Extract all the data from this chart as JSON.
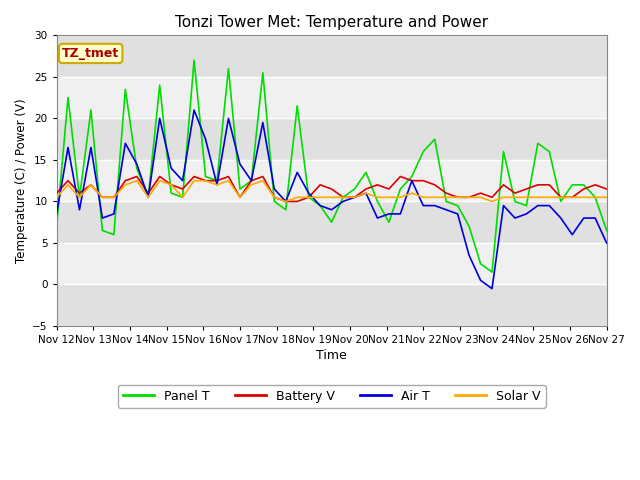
{
  "title": "Tonzi Tower Met: Temperature and Power",
  "xlabel": "Time",
  "ylabel": "Temperature (C) / Power (V)",
  "ylim": [
    -5,
    30
  ],
  "yticks": [
    -5,
    0,
    5,
    10,
    15,
    20,
    25,
    30
  ],
  "x_labels": [
    "Nov 12",
    "Nov 13",
    "Nov 14",
    "Nov 15",
    "Nov 16",
    "Nov 17",
    "Nov 18",
    "Nov 19",
    "Nov 20",
    "Nov 21",
    "Nov 22",
    "Nov 23",
    "Nov 24",
    "Nov 25",
    "Nov 26",
    "Nov 27"
  ],
  "annotation_text": "TZ_tmet",
  "annotation_color": "#aa0000",
  "annotation_bg": "#ffffcc",
  "annotation_border": "#ccaa00",
  "fig_bg": "#ffffff",
  "plot_bg_light": "#f0f0f0",
  "plot_bg_dark": "#e0e0e0",
  "grid_color": "#ffffff",
  "panel_t_color": "#00dd00",
  "battery_v_color": "#dd0000",
  "air_t_color": "#0000dd",
  "solar_v_color": "#ffaa00",
  "line_width": 1.2,
  "panel_t": [
    7.0,
    22.5,
    10.5,
    21.0,
    6.5,
    6.0,
    23.5,
    14.0,
    10.5,
    24.0,
    11.0,
    10.5,
    27.0,
    13.0,
    12.5,
    26.0,
    11.5,
    12.5,
    25.5,
    10.0,
    9.0,
    21.5,
    10.5,
    9.5,
    7.5,
    10.5,
    11.5,
    13.5,
    10.0,
    7.5,
    11.5,
    13.0,
    16.0,
    17.5,
    10.0,
    9.5,
    7.0,
    2.5,
    1.5,
    16.0,
    10.0,
    9.5,
    17.0,
    16.0,
    10.0,
    12.0,
    12.0,
    10.5,
    6.5
  ],
  "battery_v": [
    11.0,
    12.5,
    11.0,
    12.0,
    10.5,
    10.5,
    12.5,
    13.0,
    11.0,
    13.0,
    12.0,
    11.5,
    13.0,
    12.5,
    12.5,
    13.0,
    10.5,
    12.5,
    13.0,
    10.5,
    10.0,
    10.0,
    10.5,
    12.0,
    11.5,
    10.5,
    10.5,
    11.5,
    12.0,
    11.5,
    13.0,
    12.5,
    12.5,
    12.0,
    11.0,
    10.5,
    10.5,
    11.0,
    10.5,
    12.0,
    11.0,
    11.5,
    12.0,
    12.0,
    10.5,
    10.5,
    11.5,
    12.0,
    11.5
  ],
  "air_t": [
    8.5,
    16.5,
    9.0,
    16.5,
    8.0,
    8.5,
    17.0,
    14.5,
    10.5,
    20.0,
    14.0,
    12.5,
    21.0,
    17.5,
    12.0,
    20.0,
    14.5,
    12.5,
    19.5,
    11.5,
    10.0,
    13.5,
    11.0,
    9.5,
    9.0,
    10.0,
    10.5,
    11.0,
    8.0,
    8.5,
    8.5,
    12.5,
    9.5,
    9.5,
    9.0,
    8.5,
    3.5,
    0.5,
    -0.5,
    9.5,
    8.0,
    8.5,
    9.5,
    9.5,
    8.0,
    6.0,
    8.0,
    8.0,
    5.0
  ],
  "solar_v": [
    10.5,
    12.0,
    10.5,
    12.0,
    10.5,
    10.5,
    12.0,
    12.5,
    10.5,
    12.5,
    12.0,
    10.5,
    12.5,
    12.5,
    12.0,
    12.5,
    10.5,
    12.0,
    12.5,
    10.5,
    10.0,
    10.5,
    10.5,
    10.5,
    10.5,
    10.5,
    10.5,
    11.0,
    10.5,
    10.5,
    10.5,
    11.0,
    10.5,
    10.5,
    10.5,
    10.5,
    10.5,
    10.5,
    10.0,
    10.5,
    10.5,
    10.5,
    10.5,
    10.5,
    10.5,
    10.5,
    10.5,
    10.5,
    10.5
  ]
}
